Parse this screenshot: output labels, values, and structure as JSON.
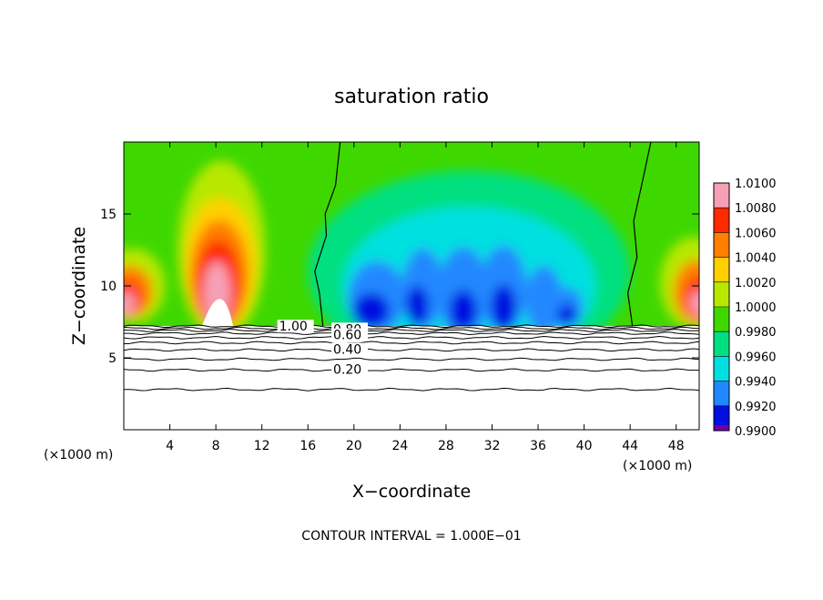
{
  "chart_data": {
    "type": "heatmap",
    "title": "saturation ratio",
    "xlabel": "X−coordinate",
    "ylabel": "Z−coordinate",
    "x_unit_left": "(×1000 m)",
    "x_unit_right": "(×1000 m)",
    "xlim": [
      0,
      50
    ],
    "ylim": [
      0,
      20
    ],
    "x_ticks": [
      4,
      8,
      12,
      16,
      20,
      24,
      28,
      32,
      36,
      40,
      44,
      48
    ],
    "x_tick_labels": [
      "4",
      "8",
      "12",
      "16",
      "20",
      "24",
      "28",
      "32",
      "36",
      "40",
      "44",
      "48"
    ],
    "y_ticks": [
      5,
      10,
      15
    ],
    "y_tick_labels": [
      "5",
      "10",
      "15"
    ],
    "footer": "CONTOUR INTERVAL = 1.000E−01",
    "colorbar": {
      "min": 0.99,
      "max": 1.01,
      "labels": [
        "1.0100",
        "1.0080",
        "1.0060",
        "1.0040",
        "1.0020",
        "1.0000",
        "0.9980",
        "0.9960",
        "0.9940",
        "0.9920",
        "0.9900"
      ],
      "colors": [
        "#f5a0b5",
        "#ff2a00",
        "#ff7f00",
        "#ffd000",
        "#b8e800",
        "#3ed800",
        "#00e080",
        "#00e0e0",
        "#2088ff",
        "#0010e0",
        "#7000a0"
      ]
    },
    "contour_labels": [
      {
        "text": "1.00",
        "x": 13.5,
        "z": 7.2
      },
      {
        "text": "0.80",
        "x": 18.2,
        "z": 7.0
      },
      {
        "text": "0.60",
        "x": 18.2,
        "z": 6.6
      },
      {
        "text": "0.40",
        "x": 18.2,
        "z": 5.6
      },
      {
        "text": "0.20",
        "x": 18.2,
        "z": 4.2
      }
    ],
    "contour_levels_z": [
      7.2,
      7.05,
      6.9,
      6.7,
      6.4,
      6.05,
      5.55,
      4.9,
      4.15,
      2.8
    ],
    "field_colors": {
      "neutral": "#3ed800",
      "above": [
        "#b8e800",
        "#ffd000",
        "#ff7f00",
        "#ff2a00",
        "#f5a0b5"
      ],
      "below": [
        "#00e080",
        "#00e0e0",
        "#2088ff",
        "#0010e0",
        "#7000a0"
      ]
    }
  }
}
